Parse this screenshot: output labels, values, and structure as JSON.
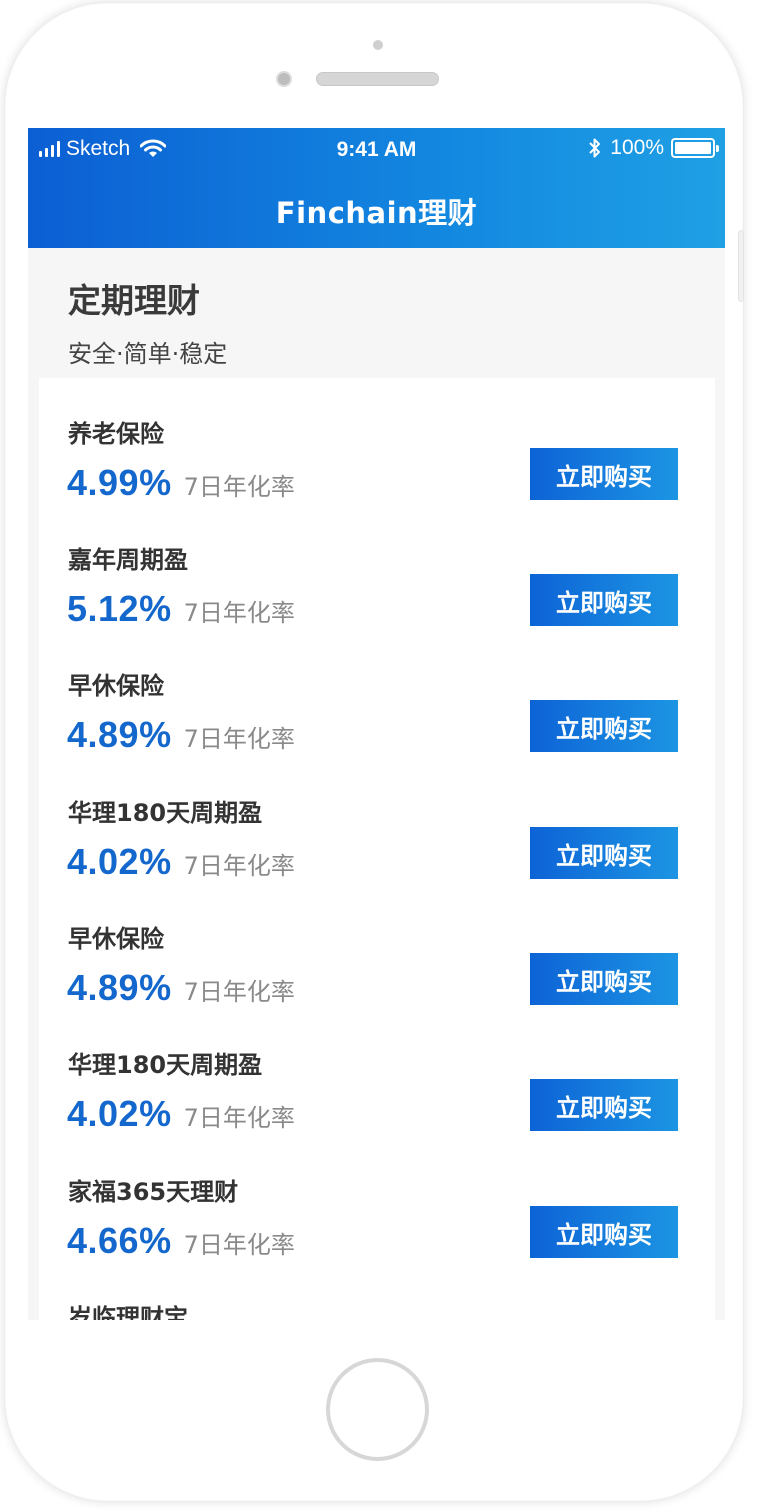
{
  "status_bar": {
    "carrier": "Sketch",
    "time": "9:41 AM",
    "battery": "100%"
  },
  "nav": {
    "title": "Finchain理财"
  },
  "section": {
    "title": "定期理财",
    "subtitle": "安全·简单·稳定"
  },
  "products": [
    {
      "name": "养老保险",
      "rate": "4.99%",
      "rate_label": "7日年化率",
      "button": "立即购买"
    },
    {
      "name": "嘉年周期盈",
      "rate": "5.12%",
      "rate_label": "7日年化率",
      "button": "立即购买"
    },
    {
      "name": "早休保险",
      "rate": "4.89%",
      "rate_label": "7日年化率",
      "button": "立即购买"
    },
    {
      "name": "华理180天周期盈",
      "rate": "4.02%",
      "rate_label": "7日年化率",
      "button": "立即购买"
    },
    {
      "name": "早休保险",
      "rate": "4.89%",
      "rate_label": "7日年化率",
      "button": "立即购买"
    },
    {
      "name": "华理180天周期盈",
      "rate": "4.02%",
      "rate_label": "7日年化率",
      "button": "立即购买"
    },
    {
      "name": "家福365天理财",
      "rate": "4.66%",
      "rate_label": "7日年化率",
      "button": "立即购买"
    },
    {
      "name": "岁临理财宝"
    }
  ],
  "colors": {
    "accent": "#1467cc",
    "header_gradient_start": "#0c5fd3",
    "header_gradient_end": "#1fa0e4"
  }
}
